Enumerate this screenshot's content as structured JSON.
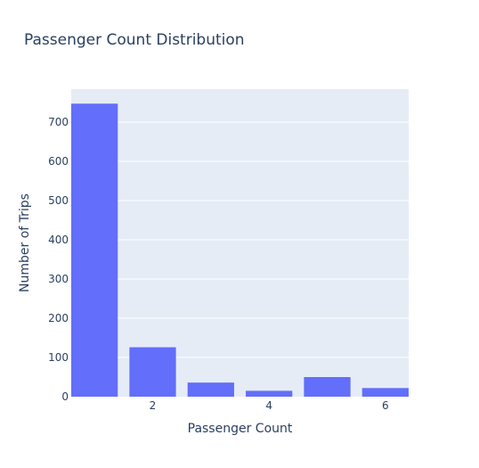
{
  "chart_data": {
    "type": "bar",
    "title": "Passenger Count Distribution",
    "xlabel": "Passenger Count",
    "ylabel": "Number of Trips",
    "x": [
      1,
      2,
      3,
      4,
      5,
      6
    ],
    "values": [
      747,
      126,
      36,
      15,
      50,
      22
    ],
    "xlim": [
      0.6,
      6.4
    ],
    "ylim": [
      0,
      784
    ],
    "x_ticks": [
      2,
      4,
      6
    ],
    "y_ticks": [
      0,
      100,
      200,
      300,
      400,
      500,
      600,
      700
    ],
    "grid": true,
    "colors": {
      "bar": "#636efa",
      "plot_bg": "#e5ecf6",
      "grid": "#ffffff",
      "text": "#2a3f5f"
    }
  }
}
